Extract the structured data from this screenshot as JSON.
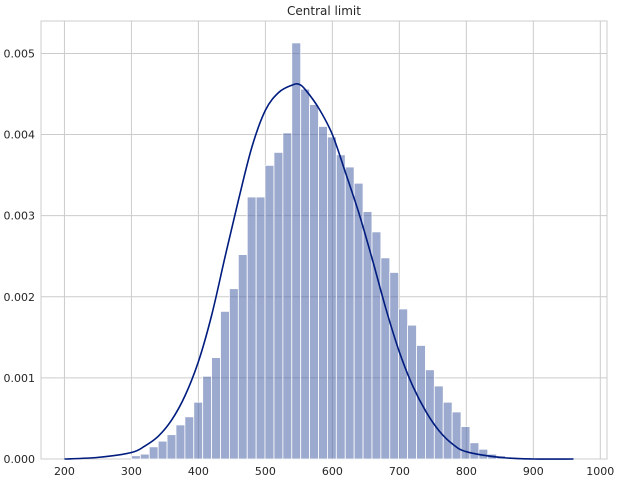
{
  "chart_data": {
    "type": "bar",
    "subtype": "histogram-with-kde",
    "title": "Central limit",
    "xlabel": "",
    "ylabel": "",
    "xlim": [
      165,
      1010
    ],
    "ylim": [
      0,
      0.0054
    ],
    "grid": true,
    "x_ticks": [
      200,
      300,
      400,
      500,
      600,
      700,
      800,
      900,
      1000
    ],
    "x_tick_labels": [
      "200",
      "300",
      "400",
      "500",
      "600",
      "700",
      "800",
      "900",
      "1000"
    ],
    "y_ticks": [
      0,
      0.001,
      0.002,
      0.003,
      0.004,
      0.005
    ],
    "y_tick_labels": [
      "0.000",
      "0.001",
      "0.002",
      "0.003",
      "0.004",
      "0.005"
    ],
    "histogram": {
      "color": "#4c64a8",
      "opacity": 0.55,
      "bin_edges": [
        300,
        313.3,
        326.6,
        339.9,
        353.2,
        366.5,
        379.8,
        393.1,
        406.4,
        419.7,
        433,
        446.3,
        459.6,
        472.9,
        486.2,
        499.5,
        512.8,
        526.1,
        539.4,
        552.7,
        566,
        579.3,
        592.6,
        605.9,
        619.2,
        632.5,
        645.8,
        659.1,
        672.4,
        685.7,
        699,
        712.3,
        725.6,
        738.9,
        752.2,
        765.5,
        778.8,
        792.1,
        805.4,
        818.7,
        832,
        845.3,
        858.6,
        871.9
      ],
      "densities": [
        4e-05,
        6e-05,
        0.00015,
        0.00022,
        0.0003,
        0.00042,
        0.00052,
        0.0007,
        0.00102,
        0.00125,
        0.00182,
        0.0021,
        0.00252,
        0.00323,
        0.00323,
        0.00362,
        0.00378,
        0.00402,
        0.00513,
        0.00456,
        0.00437,
        0.0041,
        0.00397,
        0.00375,
        0.0036,
        0.0034,
        0.00305,
        0.0028,
        0.00248,
        0.0023,
        0.00185,
        0.00165,
        0.0014,
        0.0011,
        0.0009,
        0.0007,
        0.00058,
        0.0004,
        0.0002,
        0.00012,
        6e-05,
        4e-05,
        2e-05
      ]
    },
    "kde": {
      "color": "#001c7f",
      "x": [
        200,
        250,
        300,
        320,
        340,
        360,
        380,
        400,
        420,
        440,
        460,
        480,
        500,
        520,
        540,
        550,
        560,
        580,
        600,
        620,
        640,
        660,
        680,
        700,
        720,
        740,
        760,
        780,
        800,
        850,
        900,
        960
      ],
      "y": [
        0.0,
        2e-05,
        8e-05,
        0.00016,
        0.00028,
        0.00048,
        0.00078,
        0.0012,
        0.00178,
        0.0025,
        0.0032,
        0.00385,
        0.0043,
        0.00452,
        0.00461,
        0.00462,
        0.00455,
        0.00432,
        0.004,
        0.00352,
        0.00302,
        0.00245,
        0.00185,
        0.00132,
        0.0009,
        0.00058,
        0.00034,
        0.00018,
        9e-05,
        2e-05,
        0.0,
        0.0
      ]
    }
  }
}
